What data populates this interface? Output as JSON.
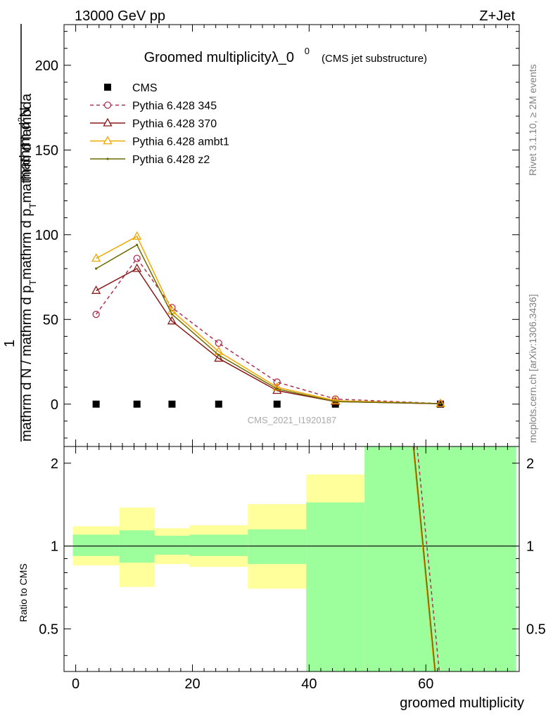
{
  "header": {
    "energy_label": "13000 GeV pp",
    "process_label": "Z+Jet",
    "side_rivet": "Rivet 3.1.10, ≥ 2M events",
    "side_mcplots": "mcplots.cern.ch [arXiv:1306.3436]"
  },
  "chart_data": [
    {
      "type": "line",
      "title": "Groomed multiplicityλ_0",
      "title_sup": "0",
      "subtitle": "(CMS jet substructure)",
      "watermark": "CMS_2021_I1920187",
      "ylabel_top": "1",
      "ylabel_numer": "mathrm d",
      "ylabel_numer_sup": "2",
      "ylabel_numer_end": "N",
      "ylabel_denom": "mathrm d N / mathrm d p",
      "ylabel_denom_sub": "T",
      "ylabel_denom_mid": "mathrm d p",
      "ylabel_denom_end": "mathrm d lambda",
      "xlim": [
        -2,
        76
      ],
      "ylim": [
        -25,
        224
      ],
      "yticks": [
        0,
        50,
        100,
        150,
        200
      ],
      "legend_position": "top-left",
      "series": [
        {
          "name": "CMS",
          "style": "data",
          "color": "#000000",
          "x": [
            3.5,
            10.5,
            16.5,
            24.5,
            34.5,
            44.5,
            62.5
          ],
          "y": [
            0,
            0,
            0,
            0,
            0,
            0,
            0
          ]
        },
        {
          "name": "Pythia 6.428 345",
          "style": "dashed-circle",
          "color": "#b03050",
          "x": [
            3.5,
            10.5,
            16.5,
            24.5,
            34.5,
            44.5,
            62.5
          ],
          "y": [
            53,
            86,
            57,
            36,
            13,
            3,
            0.3
          ]
        },
        {
          "name": "Pythia 6.428 370",
          "style": "solid-triangle",
          "color": "#8b1a1a",
          "x": [
            3.5,
            10.5,
            16.5,
            24.5,
            34.5,
            44.5,
            62.5
          ],
          "y": [
            67,
            80,
            49,
            27,
            8,
            1.5,
            0.2
          ]
        },
        {
          "name": "Pythia 6.428 ambt1",
          "style": "solid-triangle",
          "color": "#f0a800",
          "x": [
            3.5,
            10.5,
            16.5,
            24.5,
            34.5,
            44.5,
            62.5
          ],
          "y": [
            86,
            99,
            55,
            31,
            10,
            2,
            0.3
          ]
        },
        {
          "name": "Pythia 6.428 z2",
          "style": "solid-dot",
          "color": "#6b6b00",
          "x": [
            3.5,
            10.5,
            16.5,
            24.5,
            34.5,
            44.5,
            62.5
          ],
          "y": [
            80,
            94,
            53,
            29,
            9,
            1.5,
            0.3
          ]
        }
      ]
    },
    {
      "type": "area",
      "ylabel": "Ratio to CMS",
      "xlabel": "groomed multiplicity",
      "xlim": [
        -2,
        76
      ],
      "ylim": [
        0.35,
        2.3
      ],
      "yticks": [
        0.5,
        1,
        2
      ],
      "ytick_labels": [
        "0.5",
        "1",
        "2"
      ],
      "xticks": [
        0,
        20,
        40,
        60
      ],
      "xtick_labels": [
        "0",
        "20",
        "40",
        "60"
      ],
      "bands": [
        {
          "x0": -0.5,
          "x1": 7.5,
          "stat_lo": 0.92,
          "stat_hi": 1.1,
          "sys_lo": 0.85,
          "sys_hi": 1.18
        },
        {
          "x0": 7.5,
          "x1": 13.5,
          "stat_lo": 0.87,
          "stat_hi": 1.14,
          "sys_lo": 0.71,
          "sys_hi": 1.38
        },
        {
          "x0": 13.5,
          "x1": 19.5,
          "stat_lo": 0.93,
          "stat_hi": 1.09,
          "sys_lo": 0.86,
          "sys_hi": 1.16
        },
        {
          "x0": 19.5,
          "x1": 29.5,
          "stat_lo": 0.92,
          "stat_hi": 1.1,
          "sys_lo": 0.84,
          "sys_hi": 1.19
        },
        {
          "x0": 29.5,
          "x1": 39.5,
          "stat_lo": 0.86,
          "stat_hi": 1.15,
          "sys_lo": 0.7,
          "sys_hi": 1.42
        },
        {
          "x0": 39.5,
          "x1": 49.5,
          "stat_lo": 0.35,
          "stat_hi": 1.44,
          "sys_lo": 0.35,
          "sys_hi": 1.82
        },
        {
          "x0": 49.5,
          "x1": 75.5,
          "stat_lo": 0.35,
          "stat_hi": 2.3,
          "sys_lo": 0.35,
          "sys_hi": 2.3
        }
      ],
      "ratio_lines": [
        {
          "name": "Pythia 6.428 345",
          "color": "#b03050",
          "style": "dashed",
          "x": [
            58.5,
            62.3
          ],
          "y": [
            2.3,
            0.35
          ]
        },
        {
          "name": "Pythia 6.428 370",
          "color": "#8b1a1a",
          "style": "solid",
          "x": [
            57.9,
            61.6
          ],
          "y": [
            2.3,
            0.35
          ]
        },
        {
          "name": "Pythia 6.428 ambt1",
          "color": "#f0a800",
          "style": "solid",
          "x": [
            57.8,
            61.5
          ],
          "y": [
            2.3,
            0.35
          ]
        },
        {
          "name": "Pythia 6.428 z2",
          "color": "#6b6b00",
          "style": "solid",
          "x": [
            57.9,
            61.6
          ],
          "y": [
            2.3,
            0.35
          ]
        }
      ],
      "colors": {
        "stat_band": "#9cff9c",
        "sys_band": "#ffff9c",
        "reference_line": "#000000"
      }
    }
  ]
}
